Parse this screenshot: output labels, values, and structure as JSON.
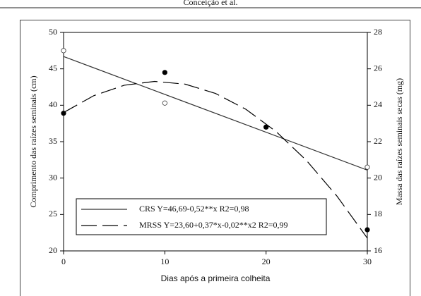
{
  "header": {
    "title": "Conceição et al."
  },
  "chart_data": {
    "type": "scatter",
    "xlabel": "Dias após a primeira colheita",
    "ylabel": "Comprimento das raízes seminais (cm)",
    "y2label": "Massa das raízes seminais secas (mg)",
    "xlim": [
      0,
      30
    ],
    "xticks": [
      0,
      10,
      20,
      30
    ],
    "ylim": [
      20,
      50
    ],
    "yticks": [
      20,
      25,
      30,
      35,
      40,
      45,
      50
    ],
    "y2lim": [
      16,
      28
    ],
    "y2ticks": [
      16,
      18,
      20,
      22,
      24,
      26,
      28
    ],
    "series": [
      {
        "name": "CRS Y=46,69-0,52**x R2=0,98",
        "color": "#333333",
        "marker": "open",
        "dash": "solid",
        "x": [
          0,
          10,
          20,
          30
        ],
        "values": [
          47.5,
          40.3,
          37.0,
          31.5
        ],
        "fit_x": [
          0,
          30
        ],
        "fit_values": [
          46.69,
          31.09
        ]
      },
      {
        "name": "MRSS Y=23,60+0,37*x-0,02**x2 R2=0,99",
        "color": "#000000",
        "marker": "filled",
        "dash": "long",
        "axis": "y2",
        "x": [
          0,
          10,
          20,
          30
        ],
        "values": [
          23.56,
          25.8,
          22.8,
          17.16
        ],
        "fit_x": [
          0,
          3,
          6,
          9,
          12,
          15,
          18,
          21,
          24,
          27,
          30
        ],
        "fit_values": [
          23.6,
          24.53,
          25.1,
          25.31,
          25.16,
          24.65,
          23.78,
          22.55,
          20.96,
          19.01,
          16.7
        ]
      }
    ]
  }
}
